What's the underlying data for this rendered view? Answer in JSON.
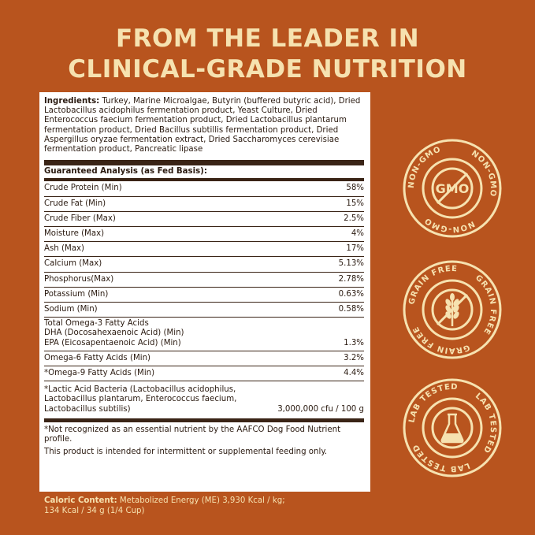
{
  "headline": {
    "line1": "FROM THE LEADER IN",
    "line2": "CLINICAL-GRADE NUTRITION"
  },
  "ingredients": {
    "label": "Ingredients:",
    "text": " Turkey, Marine Microalgae, Butyrin (buffered butyric acid), Dried Lactobacillus acidophilus fermentation product, Yeast Culture, Dried Enterococcus faecium fermentation product, Dried Lactobacillus plantarum fermentation product, Dried Bacillus subtillis fermentation product, Dried Aspergillus oryzae fermentation extract, Dried Saccharomyces cerevisiae fermentation product, Pancreatic lipase"
  },
  "analysis": {
    "title": "Guaranteed Analysis (as Fed Basis):",
    "rows": [
      {
        "name": "Crude Protein (Min)",
        "value": "58%"
      },
      {
        "name": "Crude Fat (Min)",
        "value": "15%"
      },
      {
        "name": "Crude Fiber (Max)",
        "value": "2.5%"
      },
      {
        "name": "Moisture (Max)",
        "value": "4%"
      },
      {
        "name": "Ash (Max)",
        "value": "17%"
      },
      {
        "name": "Calcium (Max)",
        "value": "5.13%"
      },
      {
        "name": "Phosphorus(Max)",
        "value": "2.78%"
      },
      {
        "name": "Potassium (Min)",
        "value": "0.63%"
      },
      {
        "name": "Sodium (Min)",
        "value": "0.58%"
      }
    ],
    "omega3": {
      "line1": "Total Omega-3 Fatty Acids",
      "line2": "DHA (Docosahexaenoic Acid) (Min)",
      "line3": "EPA (Eicosapentaenoic Acid) (Min)",
      "value": "1.3%"
    },
    "rows2": [
      {
        "name": "Omega-6 Fatty Acids (Min)",
        "value": "3.2%"
      },
      {
        "name": "*Omega-9 Fatty Acids (Min)",
        "value": "4.4%"
      }
    ],
    "bacteria": {
      "line1": "*Lactic Acid Bacteria (Lactobacillus acidophilus,",
      "line2": "Lactobacillus plantarum, Enterococcus faecium,",
      "line3": "Lactobacillus subtilis)",
      "value": "3,000,000 cfu / 100 g"
    }
  },
  "notes": {
    "note1": "*Not recognized as an essential nutrient by the AAFCO Dog Food Nutrient profile.",
    "note2": "This product is intended for intermittent or supplemental feeding only."
  },
  "caloric": {
    "label": "Caloric Content:",
    "line1": " Metabolized Energy (ME) 3,930 Kcal / kg;",
    "line2": "134 Kcal / 34 g (1/4 Cup)"
  },
  "badges": {
    "non_gmo": {
      "ring_text": "NON-GMO",
      "center_text": "GMO",
      "icon": "crossed-gmo-icon"
    },
    "grain_free": {
      "ring_text": "GRAIN FREE",
      "icon": "crossed-wheat-icon"
    },
    "lab_tested": {
      "ring_text": "LAB TESTED",
      "icon": "flask-icon"
    }
  },
  "colors": {
    "background": "#b8541e",
    "cream": "#f6e2b0",
    "dark": "#3a2416"
  }
}
